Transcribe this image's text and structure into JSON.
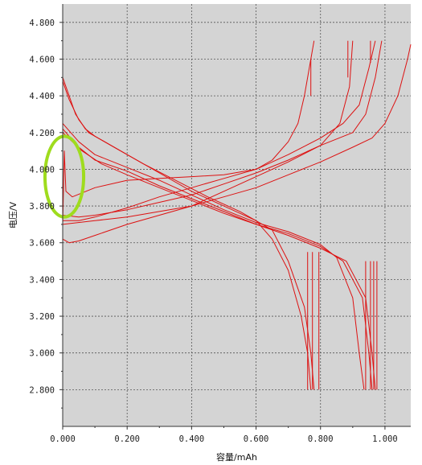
{
  "chart_data": {
    "type": "line",
    "title": "",
    "xlabel": "容量/mAh",
    "ylabel": "电压/V",
    "xlim": [
      0.0,
      1.08
    ],
    "ylim": [
      2.6,
      4.9
    ],
    "x_ticks": [
      "0.000",
      "0.200",
      "0.400",
      "0.600",
      "0.800",
      "1.000"
    ],
    "y_ticks": [
      "2.800",
      "3.000",
      "3.200",
      "3.400",
      "3.600",
      "3.800",
      "4.000",
      "4.200",
      "4.400",
      "4.600",
      "4.800"
    ],
    "grid": true,
    "legend": "none",
    "plot_background": "#d4d4d4",
    "line_color": "#dd1111",
    "highlight": {
      "shape": "ellipse",
      "color": "#9fdc1e",
      "center_x": 0.005,
      "center_y": 3.96,
      "rx": 0.06,
      "ry": 0.22
    },
    "series": [
      {
        "values": [
          [
            0.0,
            3.7
          ],
          [
            0.005,
            4.1
          ],
          [
            0.01,
            3.88
          ],
          [
            0.03,
            3.85
          ],
          [
            0.1,
            3.9
          ],
          [
            0.2,
            3.94
          ],
          [
            0.3,
            3.95
          ],
          [
            0.4,
            3.96
          ],
          [
            0.5,
            3.97
          ],
          [
            0.6,
            4.0
          ],
          [
            0.65,
            4.05
          ],
          [
            0.7,
            4.15
          ],
          [
            0.73,
            4.25
          ],
          [
            0.75,
            4.4
          ],
          [
            0.77,
            4.6
          ],
          [
            0.78,
            4.7
          ]
        ]
      },
      {
        "values": [
          [
            0.0,
            3.62
          ],
          [
            0.02,
            3.6
          ],
          [
            0.05,
            3.61
          ],
          [
            0.1,
            3.64
          ],
          [
            0.2,
            3.7
          ],
          [
            0.3,
            3.75
          ],
          [
            0.4,
            3.8
          ],
          [
            0.5,
            3.88
          ],
          [
            0.6,
            3.96
          ],
          [
            0.7,
            4.04
          ],
          [
            0.8,
            4.13
          ],
          [
            0.86,
            4.25
          ],
          [
            0.89,
            4.45
          ],
          [
            0.9,
            4.7
          ]
        ]
      },
      {
        "values": [
          [
            0.0,
            3.72
          ],
          [
            0.05,
            3.72
          ],
          [
            0.1,
            3.74
          ],
          [
            0.2,
            3.79
          ],
          [
            0.3,
            3.85
          ],
          [
            0.4,
            3.9
          ],
          [
            0.5,
            3.95
          ],
          [
            0.6,
            4.0
          ],
          [
            0.7,
            4.08
          ],
          [
            0.8,
            4.17
          ],
          [
            0.87,
            4.25
          ],
          [
            0.92,
            4.35
          ],
          [
            0.95,
            4.55
          ],
          [
            0.97,
            4.7
          ]
        ]
      },
      {
        "values": [
          [
            0.0,
            3.75
          ],
          [
            0.05,
            3.74
          ],
          [
            0.1,
            3.75
          ],
          [
            0.2,
            3.78
          ],
          [
            0.3,
            3.82
          ],
          [
            0.4,
            3.86
          ],
          [
            0.5,
            3.92
          ],
          [
            0.6,
            3.98
          ],
          [
            0.7,
            4.05
          ],
          [
            0.8,
            4.13
          ],
          [
            0.9,
            4.2
          ],
          [
            0.94,
            4.3
          ],
          [
            0.97,
            4.5
          ],
          [
            0.99,
            4.7
          ]
        ]
      },
      {
        "values": [
          [
            0.0,
            3.7
          ],
          [
            0.1,
            3.72
          ],
          [
            0.2,
            3.74
          ],
          [
            0.3,
            3.77
          ],
          [
            0.4,
            3.8
          ],
          [
            0.5,
            3.85
          ],
          [
            0.6,
            3.9
          ],
          [
            0.7,
            3.97
          ],
          [
            0.8,
            4.04
          ],
          [
            0.9,
            4.12
          ],
          [
            0.96,
            4.17
          ],
          [
            1.0,
            4.25
          ],
          [
            1.04,
            4.4
          ],
          [
            1.07,
            4.6
          ],
          [
            1.08,
            4.68
          ]
        ]
      },
      {
        "values": [
          [
            0.0,
            4.5
          ],
          [
            0.02,
            4.4
          ],
          [
            0.04,
            4.3
          ],
          [
            0.07,
            4.22
          ],
          [
            0.1,
            4.18
          ],
          [
            0.2,
            4.08
          ],
          [
            0.3,
            3.98
          ],
          [
            0.4,
            3.88
          ],
          [
            0.5,
            3.8
          ],
          [
            0.6,
            3.72
          ],
          [
            0.65,
            3.62
          ],
          [
            0.7,
            3.45
          ],
          [
            0.74,
            3.2
          ],
          [
            0.76,
            3.0
          ],
          [
            0.77,
            2.8
          ]
        ]
      },
      {
        "values": [
          [
            0.0,
            4.48
          ],
          [
            0.02,
            4.38
          ],
          [
            0.05,
            4.27
          ],
          [
            0.08,
            4.2
          ],
          [
            0.15,
            4.13
          ],
          [
            0.25,
            4.03
          ],
          [
            0.35,
            3.94
          ],
          [
            0.45,
            3.85
          ],
          [
            0.55,
            3.77
          ],
          [
            0.65,
            3.67
          ],
          [
            0.7,
            3.5
          ],
          [
            0.75,
            3.25
          ],
          [
            0.77,
            3.0
          ],
          [
            0.78,
            2.8
          ]
        ]
      },
      {
        "values": [
          [
            0.0,
            4.25
          ],
          [
            0.05,
            4.15
          ],
          [
            0.1,
            4.08
          ],
          [
            0.2,
            4.01
          ],
          [
            0.3,
            3.94
          ],
          [
            0.4,
            3.86
          ],
          [
            0.5,
            3.78
          ],
          [
            0.6,
            3.71
          ],
          [
            0.7,
            3.66
          ],
          [
            0.8,
            3.59
          ],
          [
            0.85,
            3.52
          ],
          [
            0.9,
            3.3
          ],
          [
            0.92,
            3.0
          ],
          [
            0.935,
            2.8
          ]
        ]
      },
      {
        "values": [
          [
            0.0,
            4.22
          ],
          [
            0.05,
            4.12
          ],
          [
            0.1,
            4.05
          ],
          [
            0.2,
            3.99
          ],
          [
            0.3,
            3.91
          ],
          [
            0.4,
            3.84
          ],
          [
            0.5,
            3.77
          ],
          [
            0.6,
            3.7
          ],
          [
            0.7,
            3.65
          ],
          [
            0.8,
            3.58
          ],
          [
            0.87,
            3.5
          ],
          [
            0.93,
            3.3
          ],
          [
            0.95,
            3.0
          ],
          [
            0.96,
            2.8
          ]
        ]
      },
      {
        "values": [
          [
            0.0,
            4.2
          ],
          [
            0.06,
            4.1
          ],
          [
            0.12,
            4.03
          ],
          [
            0.2,
            3.97
          ],
          [
            0.3,
            3.9
          ],
          [
            0.4,
            3.83
          ],
          [
            0.5,
            3.76
          ],
          [
            0.6,
            3.7
          ],
          [
            0.7,
            3.64
          ],
          [
            0.8,
            3.57
          ],
          [
            0.88,
            3.5
          ],
          [
            0.94,
            3.3
          ],
          [
            0.96,
            3.0
          ],
          [
            0.97,
            2.8
          ]
        ]
      },
      {
        "values": [
          [
            0.77,
            4.6
          ],
          [
            0.77,
            4.4
          ]
        ]
      },
      {
        "values": [
          [
            0.885,
            4.7
          ],
          [
            0.885,
            4.5
          ]
        ]
      },
      {
        "values": [
          [
            0.955,
            4.7
          ],
          [
            0.955,
            4.58
          ]
        ]
      },
      {
        "values": [
          [
            0.76,
            3.55
          ],
          [
            0.76,
            2.8
          ]
        ]
      },
      {
        "values": [
          [
            0.775,
            3.55
          ],
          [
            0.775,
            2.8
          ]
        ]
      },
      {
        "values": [
          [
            0.795,
            3.55
          ],
          [
            0.795,
            2.8
          ]
        ]
      },
      {
        "values": [
          [
            0.94,
            3.5
          ],
          [
            0.94,
            2.8
          ]
        ]
      },
      {
        "values": [
          [
            0.955,
            3.5
          ],
          [
            0.955,
            2.8
          ]
        ]
      },
      {
        "values": [
          [
            0.965,
            3.5
          ],
          [
            0.965,
            2.8
          ]
        ]
      },
      {
        "values": [
          [
            0.975,
            3.5
          ],
          [
            0.975,
            2.8
          ]
        ]
      },
      {
        "values": [
          [
            0.0,
            3.5
          ],
          [
            0.0,
            3.05
          ]
        ]
      }
    ]
  }
}
